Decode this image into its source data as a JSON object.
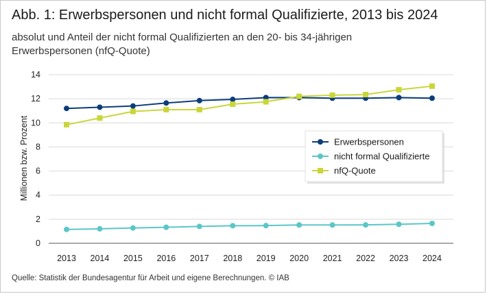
{
  "figure": {
    "title": "Abb. 1: Erwerbspersonen und nicht formal Qualifizierte, 2013 bis 2024",
    "subtitle": "absolut und Anteil der nicht formal Qualifizierten an den 20- bis 34-jährigen Erwerbspersonen (nfQ-Quote)",
    "source": "Quelle: Statistik der Bundesagentur für Arbeit und eigene Berechnungen.  © IAB"
  },
  "chart_data": {
    "type": "line",
    "title": "Abb. 1: Erwerbspersonen und nicht formal Qualifizierte, 2013 bis 2024",
    "xlabel": "",
    "ylabel": "Millionen bzw. Prozent",
    "ylim": [
      0,
      14
    ],
    "yticks": [
      "0",
      "2",
      "4",
      "6",
      "8",
      "10",
      "12",
      "14"
    ],
    "categories": [
      "2013",
      "2014",
      "2015",
      "2016",
      "2017",
      "2018",
      "2019",
      "2020",
      "2021",
      "2022",
      "2023",
      "2024"
    ],
    "grid": "horizontal",
    "legend_position": "right",
    "series": [
      {
        "name": "Erwerbspersonen",
        "color": "#0b3d7a",
        "marker": "circle",
        "values": [
          11.2,
          11.3,
          11.4,
          11.65,
          11.85,
          11.95,
          12.1,
          12.1,
          12.05,
          12.05,
          12.1,
          12.05
        ]
      },
      {
        "name": "nicht formal Qualifizierte",
        "color": "#5bc6c6",
        "marker": "circle",
        "values": [
          1.15,
          1.2,
          1.27,
          1.33,
          1.4,
          1.46,
          1.47,
          1.52,
          1.52,
          1.53,
          1.58,
          1.65
        ]
      },
      {
        "name": "nfQ-Quote",
        "color": "#c9d63a",
        "marker": "square",
        "values": [
          9.85,
          10.4,
          10.95,
          11.1,
          11.1,
          11.55,
          11.75,
          12.2,
          12.3,
          12.35,
          12.75,
          13.05
        ]
      }
    ]
  }
}
